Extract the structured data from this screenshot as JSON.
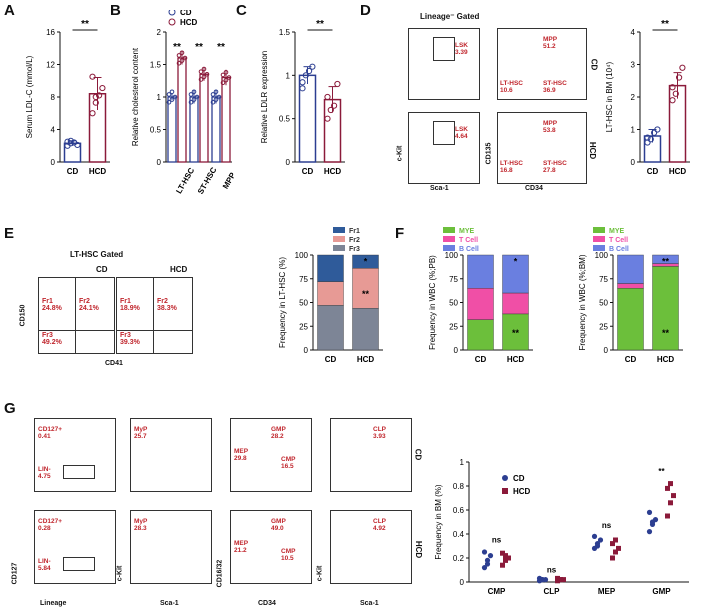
{
  "panels": {
    "A": "A",
    "B": "B",
    "C": "C",
    "D": "D",
    "E": "E",
    "F": "F",
    "G": "G"
  },
  "colors": {
    "cd": "#2c3e91",
    "hcd": "#8b1a3a",
    "fr1": "#2f5b9a",
    "fr2": "#e79a95",
    "fr3": "#7d8596",
    "mye": "#6cbf3b",
    "tcell": "#f04fa6",
    "bcell": "#6a7fe0",
    "flowred": "#c0262d"
  },
  "chart_data": [
    {
      "id": "A",
      "type": "bar",
      "categories": [
        "CD",
        "HCD"
      ],
      "values": [
        2.3,
        8.4
      ],
      "points": [
        [
          2.0,
          2.3,
          2.4,
          2.1,
          2.5,
          2.6
        ],
        [
          6.0,
          7.3,
          8.2,
          9.1,
          10.5,
          8.0
        ]
      ],
      "errors": [
        0.3,
        2.0
      ],
      "ylabel": "Serum LDL-C (mmol/L)",
      "ylim": [
        0,
        16
      ],
      "yticks": [
        0,
        4,
        8,
        12,
        16
      ],
      "sig": "**"
    },
    {
      "id": "B",
      "type": "bar",
      "categories": [
        "LT-HSC",
        "ST-HSC",
        "MPP"
      ],
      "series": [
        {
          "name": "CD",
          "values": [
            1.0,
            1.0,
            1.0
          ]
        },
        {
          "name": "HCD",
          "values": [
            1.6,
            1.35,
            1.3
          ]
        }
      ],
      "errors": [
        [
          0.05,
          0.1
        ],
        [
          0.1,
          0.1
        ],
        [
          0.1,
          0.12
        ]
      ],
      "ylabel": "Relative cholesterol content",
      "ylim": [
        0,
        2.0
      ],
      "yticks": [
        0.0,
        0.5,
        1.0,
        1.5,
        2.0
      ],
      "sig": [
        "**",
        "**",
        "**"
      ]
    },
    {
      "id": "C",
      "type": "bar",
      "categories": [
        "CD",
        "HCD"
      ],
      "values": [
        1.0,
        0.72
      ],
      "points": [
        [
          0.85,
          1.0,
          1.05,
          1.1,
          0.92
        ],
        [
          0.5,
          0.6,
          0.65,
          0.9,
          0.75
        ]
      ],
      "errors": [
        0.1,
        0.15
      ],
      "ylabel": "Relative LDLR expression",
      "ylim": [
        0,
        1.5
      ],
      "yticks": [
        0.0,
        0.5,
        1.0,
        1.5
      ],
      "sig": "**"
    },
    {
      "id": "D",
      "type": "bar",
      "categories": [
        "CD",
        "HCD"
      ],
      "values": [
        0.8,
        2.35
      ],
      "points": [
        [
          0.6,
          0.7,
          0.9,
          1.0,
          0.75
        ],
        [
          1.9,
          2.1,
          2.6,
          2.9,
          2.3
        ]
      ],
      "errors": [
        0.2,
        0.4
      ],
      "ylabel": "LT-HSC in BM (10⁴)",
      "ylim": [
        0,
        4
      ],
      "yticks": [
        0,
        1,
        2,
        3,
        4
      ],
      "sig": "**"
    },
    {
      "id": "E",
      "type": "stacked-bar",
      "categories": [
        "CD",
        "HCD"
      ],
      "series": [
        {
          "name": "Fr3",
          "values": [
            47,
            44
          ]
        },
        {
          "name": "Fr2",
          "values": [
            25,
            42
          ]
        },
        {
          "name": "Fr1",
          "values": [
            28,
            14
          ]
        }
      ],
      "ylabel": "Frequency in LT-HSC (%)",
      "ylim": [
        0,
        100
      ],
      "yticks": [
        0,
        25,
        50,
        75,
        100
      ],
      "legend": [
        "Fr1",
        "Fr2",
        "Fr3"
      ],
      "sig": [
        "*",
        "**"
      ]
    },
    {
      "id": "F1",
      "type": "stacked-bar",
      "categories": [
        "CD",
        "HCD"
      ],
      "series": [
        {
          "name": "MYE",
          "values": [
            32,
            38
          ]
        },
        {
          "name": "T Cell",
          "values": [
            33,
            22
          ]
        },
        {
          "name": "B Cell",
          "values": [
            35,
            40
          ]
        }
      ],
      "ylabel": "Frequency in WBC (%;PB)",
      "ylim": [
        0,
        100
      ],
      "yticks": [
        0,
        25,
        50,
        75,
        100
      ],
      "legend": [
        "MYE",
        "T Cell",
        "B Cell"
      ],
      "sig": [
        "*",
        "**"
      ]
    },
    {
      "id": "F2",
      "type": "stacked-bar",
      "categories": [
        "CD",
        "HCD"
      ],
      "series": [
        {
          "name": "MYE",
          "values": [
            65,
            88
          ]
        },
        {
          "name": "T Cell",
          "values": [
            5,
            3
          ]
        },
        {
          "name": "B Cell",
          "values": [
            30,
            9
          ]
        }
      ],
      "ylabel": "Frequency in WBC (%;BM)",
      "ylim": [
        0,
        100
      ],
      "yticks": [
        0,
        25,
        50,
        75,
        100
      ],
      "legend": [
        "MYE",
        "T Cell",
        "B Cell"
      ],
      "sig": [
        "**",
        "**"
      ]
    },
    {
      "id": "G",
      "type": "scatter",
      "categories": [
        "CMP",
        "CLP",
        "MEP",
        "GMP"
      ],
      "series": [
        {
          "name": "CD",
          "points": [
            [
              0.12,
              0.18,
              0.22,
              0.25,
              0.15
            ],
            [
              0.01,
              0.02,
              0.02,
              0.03,
              0.02
            ],
            [
              0.28,
              0.32,
              0.35,
              0.38,
              0.3
            ],
            [
              0.42,
              0.48,
              0.52,
              0.58,
              0.5
            ]
          ]
        },
        {
          "name": "HCD",
          "points": [
            [
              0.14,
              0.18,
              0.2,
              0.24,
              0.22
            ],
            [
              0.01,
              0.02,
              0.02,
              0.03,
              0.02
            ],
            [
              0.2,
              0.25,
              0.28,
              0.32,
              0.35
            ],
            [
              0.55,
              0.66,
              0.72,
              0.78,
              0.82
            ]
          ]
        }
      ],
      "ylabel": "Frequency in BM (%)",
      "ylim": [
        0,
        1.0
      ],
      "yticks": [
        0.0,
        0.2,
        0.4,
        0.6,
        0.8,
        1.0
      ],
      "sig": [
        "ns",
        "ns",
        "ns",
        "**"
      ]
    }
  ],
  "panel_d": {
    "title": "Lineage⁻ Gated",
    "cd": {
      "lsk": "LSK\n3.39",
      "mpp": "MPP\n51.2",
      "lt": "LT-HSC\n10.6",
      "st": "ST-HSC\n36.9",
      "label": "CD"
    },
    "hcd": {
      "lsk": "LSK\n4.64",
      "mpp": "MPP\n53.8",
      "lt": "LT-HSC\n16.8",
      "st": "ST-HSC\n27.8",
      "label": "HCD"
    },
    "axes": {
      "ckit": "c-Kit",
      "sca1": "Sca-1",
      "cd135": "CD135",
      "cd34": "CD34"
    }
  },
  "panel_e": {
    "title": "LT-HSC Gated",
    "cd": "CD",
    "hcd": "HCD",
    "cdvals": {
      "fr1": "Fr1\n24.8%",
      "fr2": "Fr2\n24.1%",
      "fr3": "Fr3\n49.2%"
    },
    "hcdvals": {
      "fr1": "Fr1\n18.9%",
      "fr2": "Fr2\n38.3%",
      "fr3": "Fr3\n39.3%"
    },
    "ylabel": "CD150",
    "xlabel": "CD41"
  },
  "panel_g": {
    "cd": {
      "cd127": "CD127+\n0.41",
      "lin": "LIN-\n4.75",
      "myp": "MyP\n25.7",
      "gmp": "GMP\n28.2",
      "mep": "MEP\n29.8",
      "cmp": "CMP\n16.5",
      "clp": "CLP\n3.93",
      "label": "CD"
    },
    "hcd": {
      "cd127": "CD127+\n0.28",
      "lin": "LIN-\n5.84",
      "myp": "MyP\n28.3",
      "gmp": "GMP\n49.0",
      "mep": "MEP\n21.2",
      "cmp": "CMP\n10.5",
      "clp": "CLP\n4.92",
      "label": "HCD"
    },
    "axes": {
      "cd127": "CD127",
      "lineage": "Lineage",
      "ckit1": "c-Kit",
      "sca1a": "Sca-1",
      "cd1632": "CD16/32",
      "cd34": "CD34",
      "ckit2": "c-Kit",
      "sca1b": "Sca-1"
    }
  }
}
